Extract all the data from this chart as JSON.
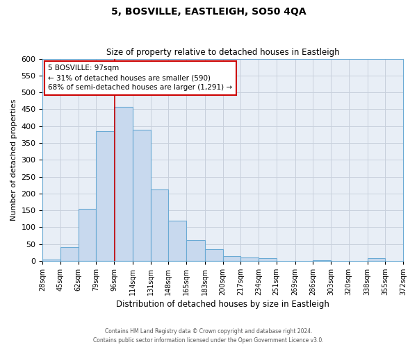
{
  "title": "5, BOSVILLE, EASTLEIGH, SO50 4QA",
  "subtitle": "Size of property relative to detached houses in Eastleigh",
  "xlabel": "Distribution of detached houses by size in Eastleigh",
  "ylabel": "Number of detached properties",
  "bin_edges": [
    28,
    45,
    62,
    79,
    96,
    114,
    131,
    148,
    165,
    183,
    200,
    217,
    234,
    251,
    269,
    286,
    303,
    320,
    338,
    355,
    372
  ],
  "bar_heights": [
    5,
    42,
    155,
    385,
    457,
    390,
    213,
    120,
    62,
    35,
    15,
    10,
    8,
    0,
    0,
    3,
    0,
    0,
    8,
    0
  ],
  "bar_color": "#c8d9ee",
  "bar_edge_color": "#6aaad4",
  "property_size": 97,
  "vline_color": "#cc0000",
  "annotation_line1": "5 BOSVILLE: 97sqm",
  "annotation_line2": "← 31% of detached houses are smaller (590)",
  "annotation_line3": "68% of semi-detached houses are larger (1,291) →",
  "annotation_box_edge": "#cc0000",
  "annotation_box_bg": "#ffffff",
  "ylim": [
    0,
    600
  ],
  "yticks": [
    0,
    50,
    100,
    150,
    200,
    250,
    300,
    350,
    400,
    450,
    500,
    550,
    600
  ],
  "grid_color": "#c8d0dc",
  "plot_bg_color": "#e8eef6",
  "fig_bg_color": "#ffffff",
  "footer_line1": "Contains HM Land Registry data © Crown copyright and database right 2024.",
  "footer_line2": "Contains public sector information licensed under the Open Government Licence v3.0.",
  "fig_width": 6.0,
  "fig_height": 5.0,
  "dpi": 100
}
